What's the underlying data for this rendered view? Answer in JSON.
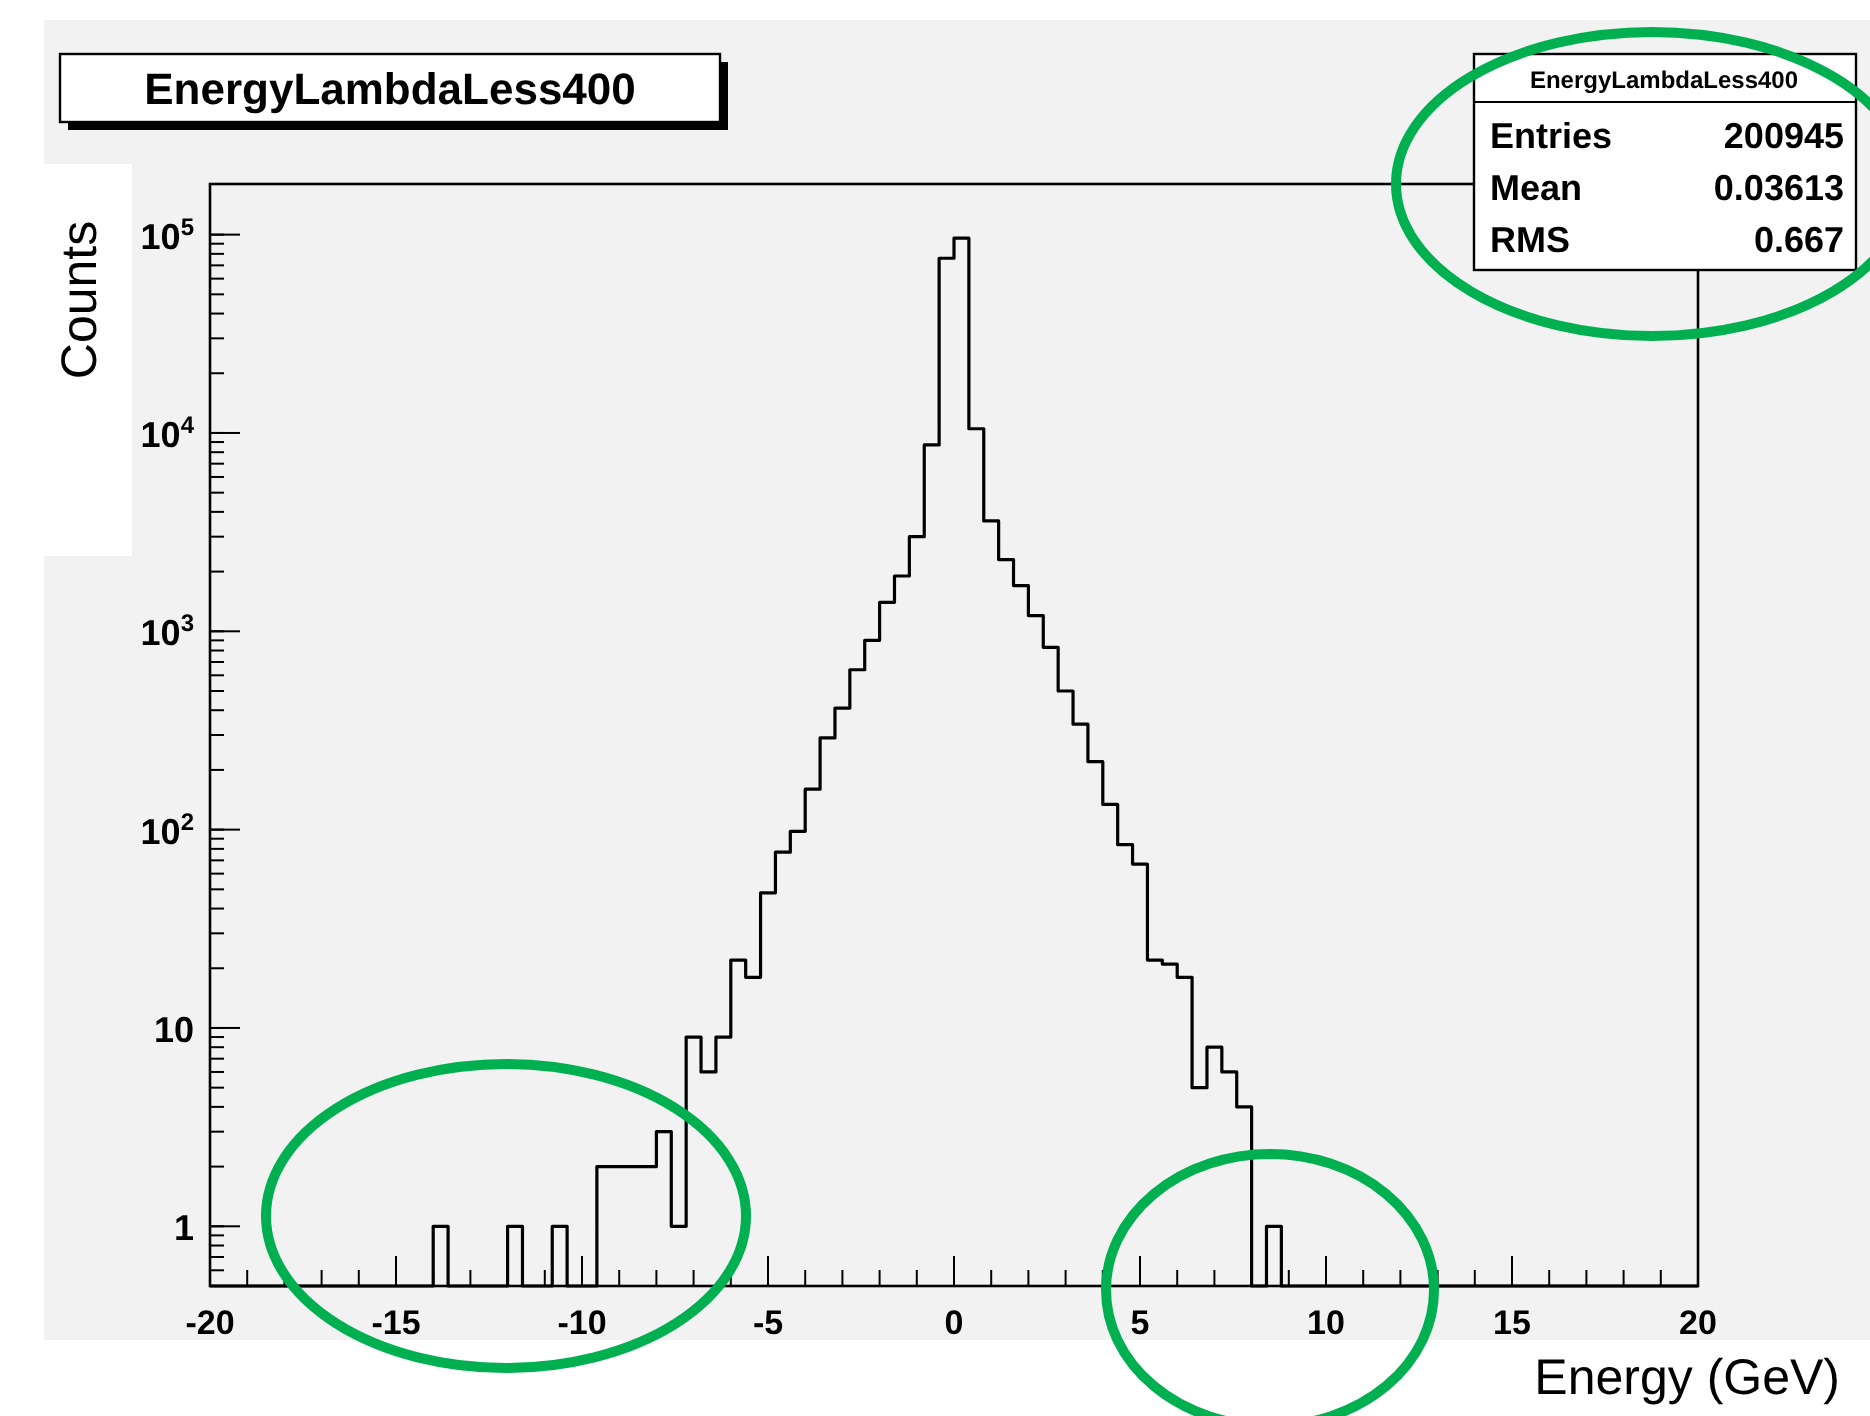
{
  "chart_data": {
    "type": "histogram",
    "title": "EnergyLambdaLess400",
    "xlabel": "Energy (GeV)",
    "ylabel": "Counts",
    "annotations": [
      "EnergyLambdaLess400",
      "Entries 200945",
      "Mean 0.03613",
      "RMS 0.667"
    ],
    "bins": [
      -20,
      -19.6,
      -19.2,
      -18.8,
      -18.4,
      -18,
      -17.6,
      -17.2,
      -16.8,
      -16.4,
      -16,
      -15.6,
      -15.2,
      -14.8,
      -14.4,
      -14,
      -13.6,
      -13.2,
      -12.8,
      -12.4,
      -12,
      -11.6,
      -11.2,
      -10.8,
      -10.4,
      -10,
      -9.6,
      -9.2,
      -8.8,
      -8.4,
      -8,
      -7.6,
      -7.2,
      -6.8,
      -6.4,
      -6,
      -5.6,
      -5.2,
      -4.8,
      -4.4,
      -4,
      -3.6,
      -3.2,
      -2.8,
      -2.4,
      -2,
      -1.6,
      -1.2,
      -0.8,
      -0.4,
      0,
      0.4,
      0.8,
      1.2,
      1.6,
      2,
      2.4,
      2.8,
      3.2,
      3.6,
      4,
      4.4,
      4.8,
      5.2,
      5.6,
      6,
      6.4,
      6.8,
      7.2,
      7.6,
      8,
      8.4,
      8.8,
      9.2,
      9.6,
      10,
      10.4,
      10.8,
      11.2,
      11.6,
      12,
      12.4,
      12.8,
      13.2,
      13.6,
      14,
      14.4,
      14.8,
      15.2,
      15.6,
      16,
      16.4,
      16.8,
      17.2,
      17.6,
      18,
      18.4,
      18.8,
      19.2,
      19.6,
      20
    ],
    "values": [
      null,
      null,
      null,
      null,
      null,
      null,
      null,
      null,
      null,
      null,
      null,
      null,
      null,
      null,
      null,
      1,
      null,
      null,
      null,
      null,
      1,
      null,
      null,
      1,
      null,
      null,
      2,
      2,
      2,
      2,
      3,
      1,
      9,
      6,
      9,
      22,
      18,
      48,
      77,
      98,
      160,
      290,
      410,
      640,
      900,
      1400,
      1900,
      3000,
      8700,
      76000,
      96000,
      10500,
      3600,
      2300,
      1700,
      1200,
      830,
      500,
      340,
      220,
      134,
      84,
      67,
      22,
      21,
      18,
      5,
      8,
      6,
      4,
      null,
      1,
      null,
      null,
      null,
      null,
      null,
      null,
      null,
      null,
      null,
      null,
      null,
      null,
      null,
      null,
      null,
      null,
      null,
      null,
      null,
      null,
      null,
      null,
      null,
      null,
      null,
      null,
      null,
      null
    ],
    "color": "#000000",
    "log": true,
    "xlim": [
      -20,
      20
    ],
    "xticks": [
      -20,
      -15,
      -10,
      -5,
      0,
      5,
      10,
      15,
      20
    ],
    "ylim": [
      0.5,
      180000
    ],
    "yticks": [
      1,
      10,
      {
        "value": 100,
        "label": "10$^{2}$"
      },
      {
        "value": 1000,
        "label": "10$^{3}$"
      },
      {
        "value": 10000,
        "label": "10$^{4}$"
      },
      {
        "value": 100000,
        "label": "10$^{5}$"
      }
    ]
  }
}
